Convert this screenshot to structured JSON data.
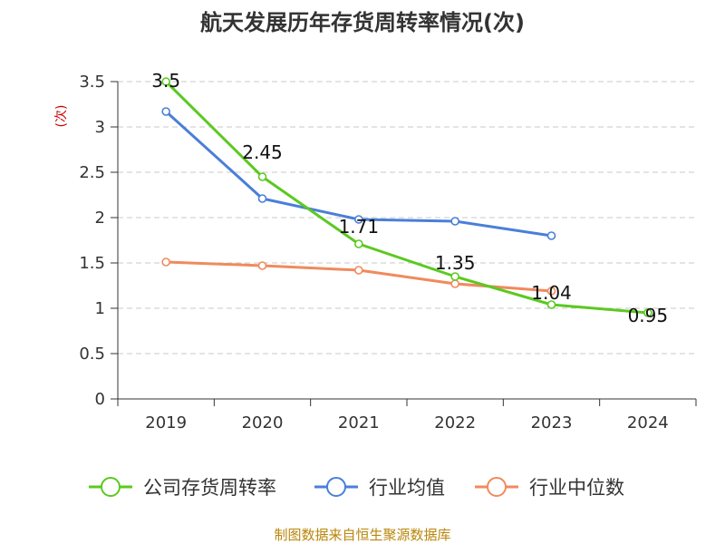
{
  "chart_data": {
    "type": "line",
    "title": "航天发展历年存货周转率情况(次)",
    "ylabel": "(次)",
    "xlabel": "",
    "categories": [
      "2019",
      "2020",
      "2021",
      "2022",
      "2023",
      "2024"
    ],
    "ylim": [
      0,
      3.5
    ],
    "yticks": [
      "0",
      "0.5",
      "1",
      "1.5",
      "2",
      "2.5",
      "3",
      "3.5"
    ],
    "grid": "horizontal dashed",
    "legend_position": "bottom",
    "series": [
      {
        "name": "公司存货周转率",
        "color": "#5bc920",
        "values": [
          3.5,
          2.45,
          1.71,
          1.35,
          1.04,
          0.95
        ],
        "labels": [
          "3.5",
          "2.45",
          "1.71",
          "1.35",
          "1.04",
          "0.95"
        ]
      },
      {
        "name": "行业均值",
        "color": "#4a7fd8",
        "values": [
          3.17,
          2.21,
          1.98,
          1.96,
          1.8,
          null
        ]
      },
      {
        "name": "行业中位数",
        "color": "#f08a5d",
        "values": [
          1.51,
          1.47,
          1.42,
          1.27,
          1.19,
          null
        ]
      }
    ]
  },
  "source": "制图数据来自恒生聚源数据库"
}
